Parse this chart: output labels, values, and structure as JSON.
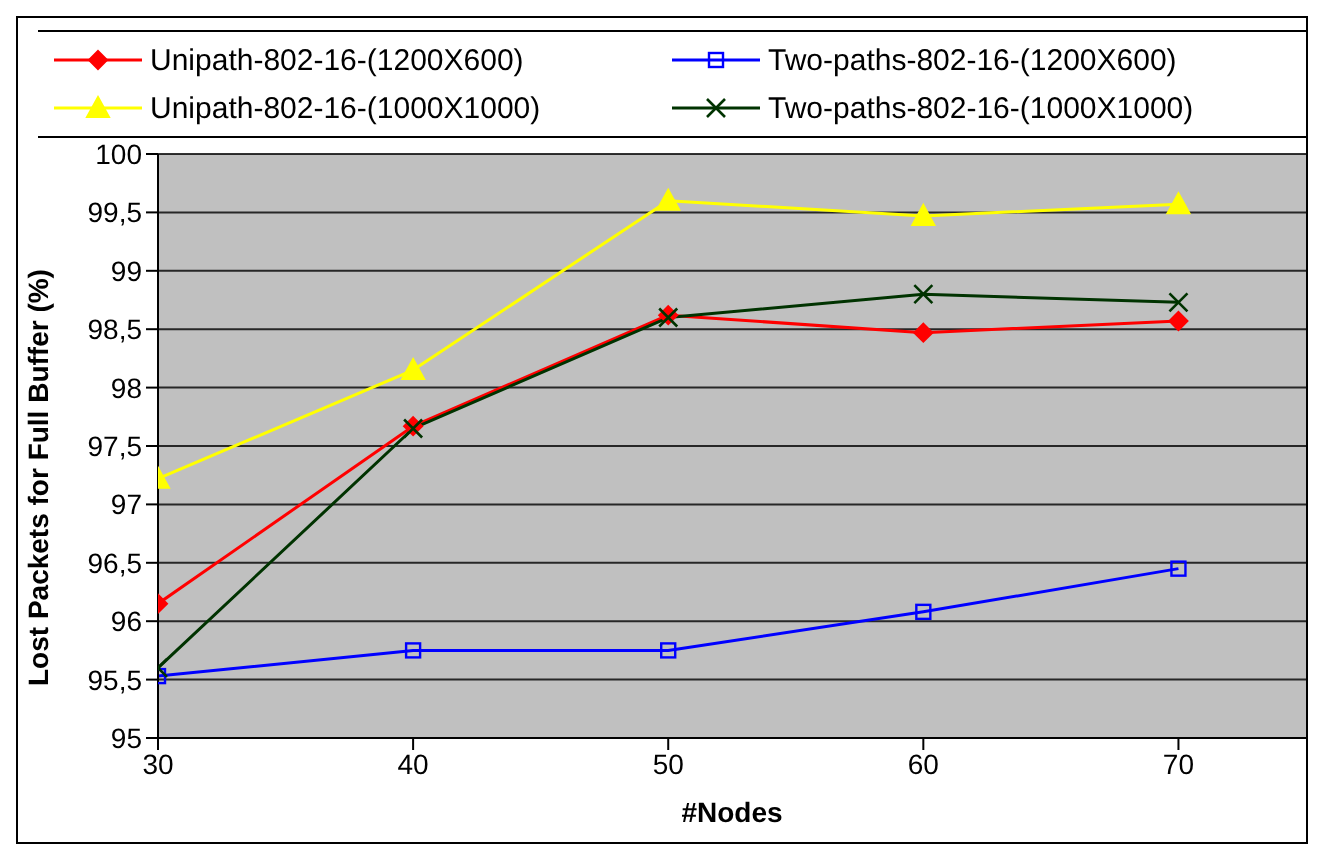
{
  "chart_data": {
    "type": "line",
    "xlabel": "#Nodes",
    "ylabel": "Lost Packets for Full Buffer (%)",
    "x": [
      30,
      40,
      50,
      60,
      70
    ],
    "xlim": [
      30,
      75
    ],
    "xticks": [
      30,
      40,
      50,
      60,
      70
    ],
    "ylim": [
      95,
      100
    ],
    "yticks": [
      95,
      {
        "value": 95.5,
        "label": "95,5"
      },
      96,
      {
        "value": 96.5,
        "label": "96,5"
      },
      97,
      {
        "value": 97.5,
        "label": "97,5"
      },
      98,
      {
        "value": 98.5,
        "label": "98,5"
      },
      99,
      {
        "value": 99.5,
        "label": "99,5"
      },
      100
    ],
    "grid": "y",
    "legend": "top",
    "line_style": "solid",
    "series": [
      {
        "name": "Unipath-802-16-(1200X600)",
        "color": "#ff0000",
        "marker": "diamond",
        "values": [
          96.15,
          97.67,
          98.62,
          98.47,
          98.57
        ]
      },
      {
        "name": "Two-paths-802-16-(1200X600)",
        "color": "#0000ff",
        "marker": "square",
        "values": [
          95.53,
          95.75,
          95.75,
          96.08,
          96.45
        ]
      },
      {
        "name": "Unipath-802-16-(1000X1000)",
        "color": "#ffff00",
        "marker": "triangle",
        "values": [
          97.22,
          98.15,
          99.6,
          99.47,
          99.57
        ]
      },
      {
        "name": "Two-paths-802-16-(1000X1000)",
        "color": "#003300",
        "marker": "cross",
        "values": [
          95.6,
          97.65,
          98.6,
          98.8,
          98.73
        ]
      }
    ]
  }
}
